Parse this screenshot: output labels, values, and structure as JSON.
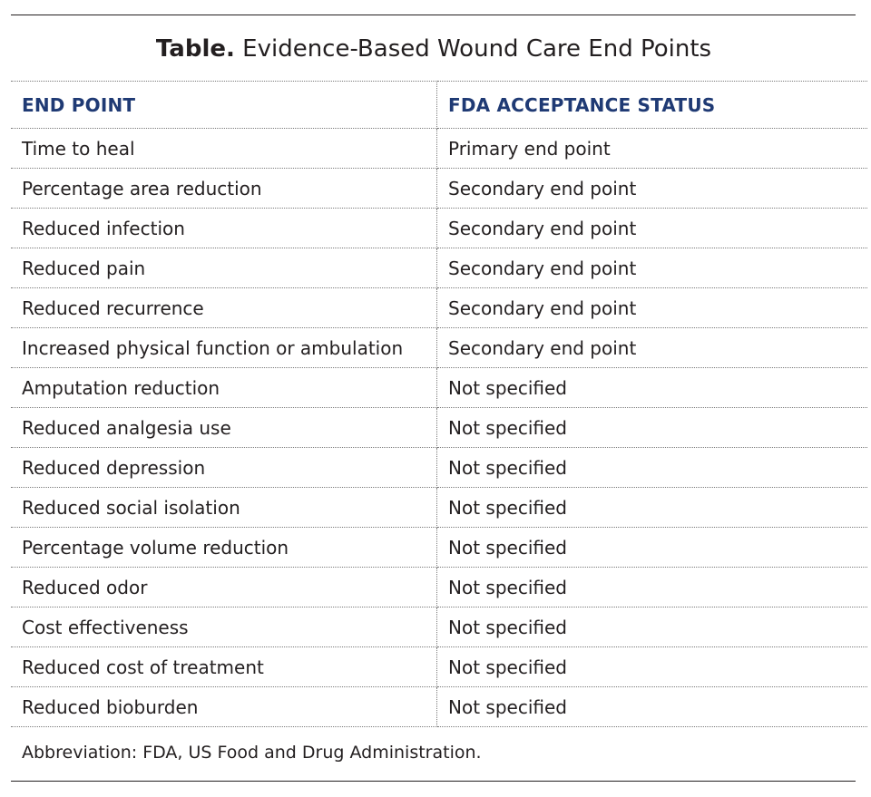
{
  "title": {
    "label": "Table.",
    "text": "Evidence-Based Wound Care End Points"
  },
  "table": {
    "headers": [
      "END POINT",
      "FDA ACCEPTANCE STATUS"
    ],
    "rows": [
      [
        "Time to heal",
        "Primary end point"
      ],
      [
        "Percentage area reduction",
        "Secondary end point"
      ],
      [
        "Reduced infection",
        "Secondary end point"
      ],
      [
        "Reduced pain",
        "Secondary end point"
      ],
      [
        "Reduced recurrence",
        "Secondary end point"
      ],
      [
        "Increased physical function or ambulation",
        "Secondary end point"
      ],
      [
        "Amputation reduction",
        "Not specified"
      ],
      [
        "Reduced analgesia use",
        "Not specified"
      ],
      [
        "Reduced depression",
        "Not specified"
      ],
      [
        "Reduced social isolation",
        "Not specified"
      ],
      [
        "Percentage volume reduction",
        "Not specified"
      ],
      [
        "Reduced odor",
        "Not specified"
      ],
      [
        "Cost effectiveness",
        "Not specified"
      ],
      [
        "Reduced cost of treatment",
        "Not specified"
      ],
      [
        "Reduced bioburden",
        "Not specified"
      ]
    ]
  },
  "footnote": "Abbreviation: FDA, US Food and Drug Administration.",
  "colors": {
    "header_text": "#1f3a74",
    "body_text": "#231f20",
    "rule": "#231f20",
    "dotted_line": "#7a7a7a"
  }
}
